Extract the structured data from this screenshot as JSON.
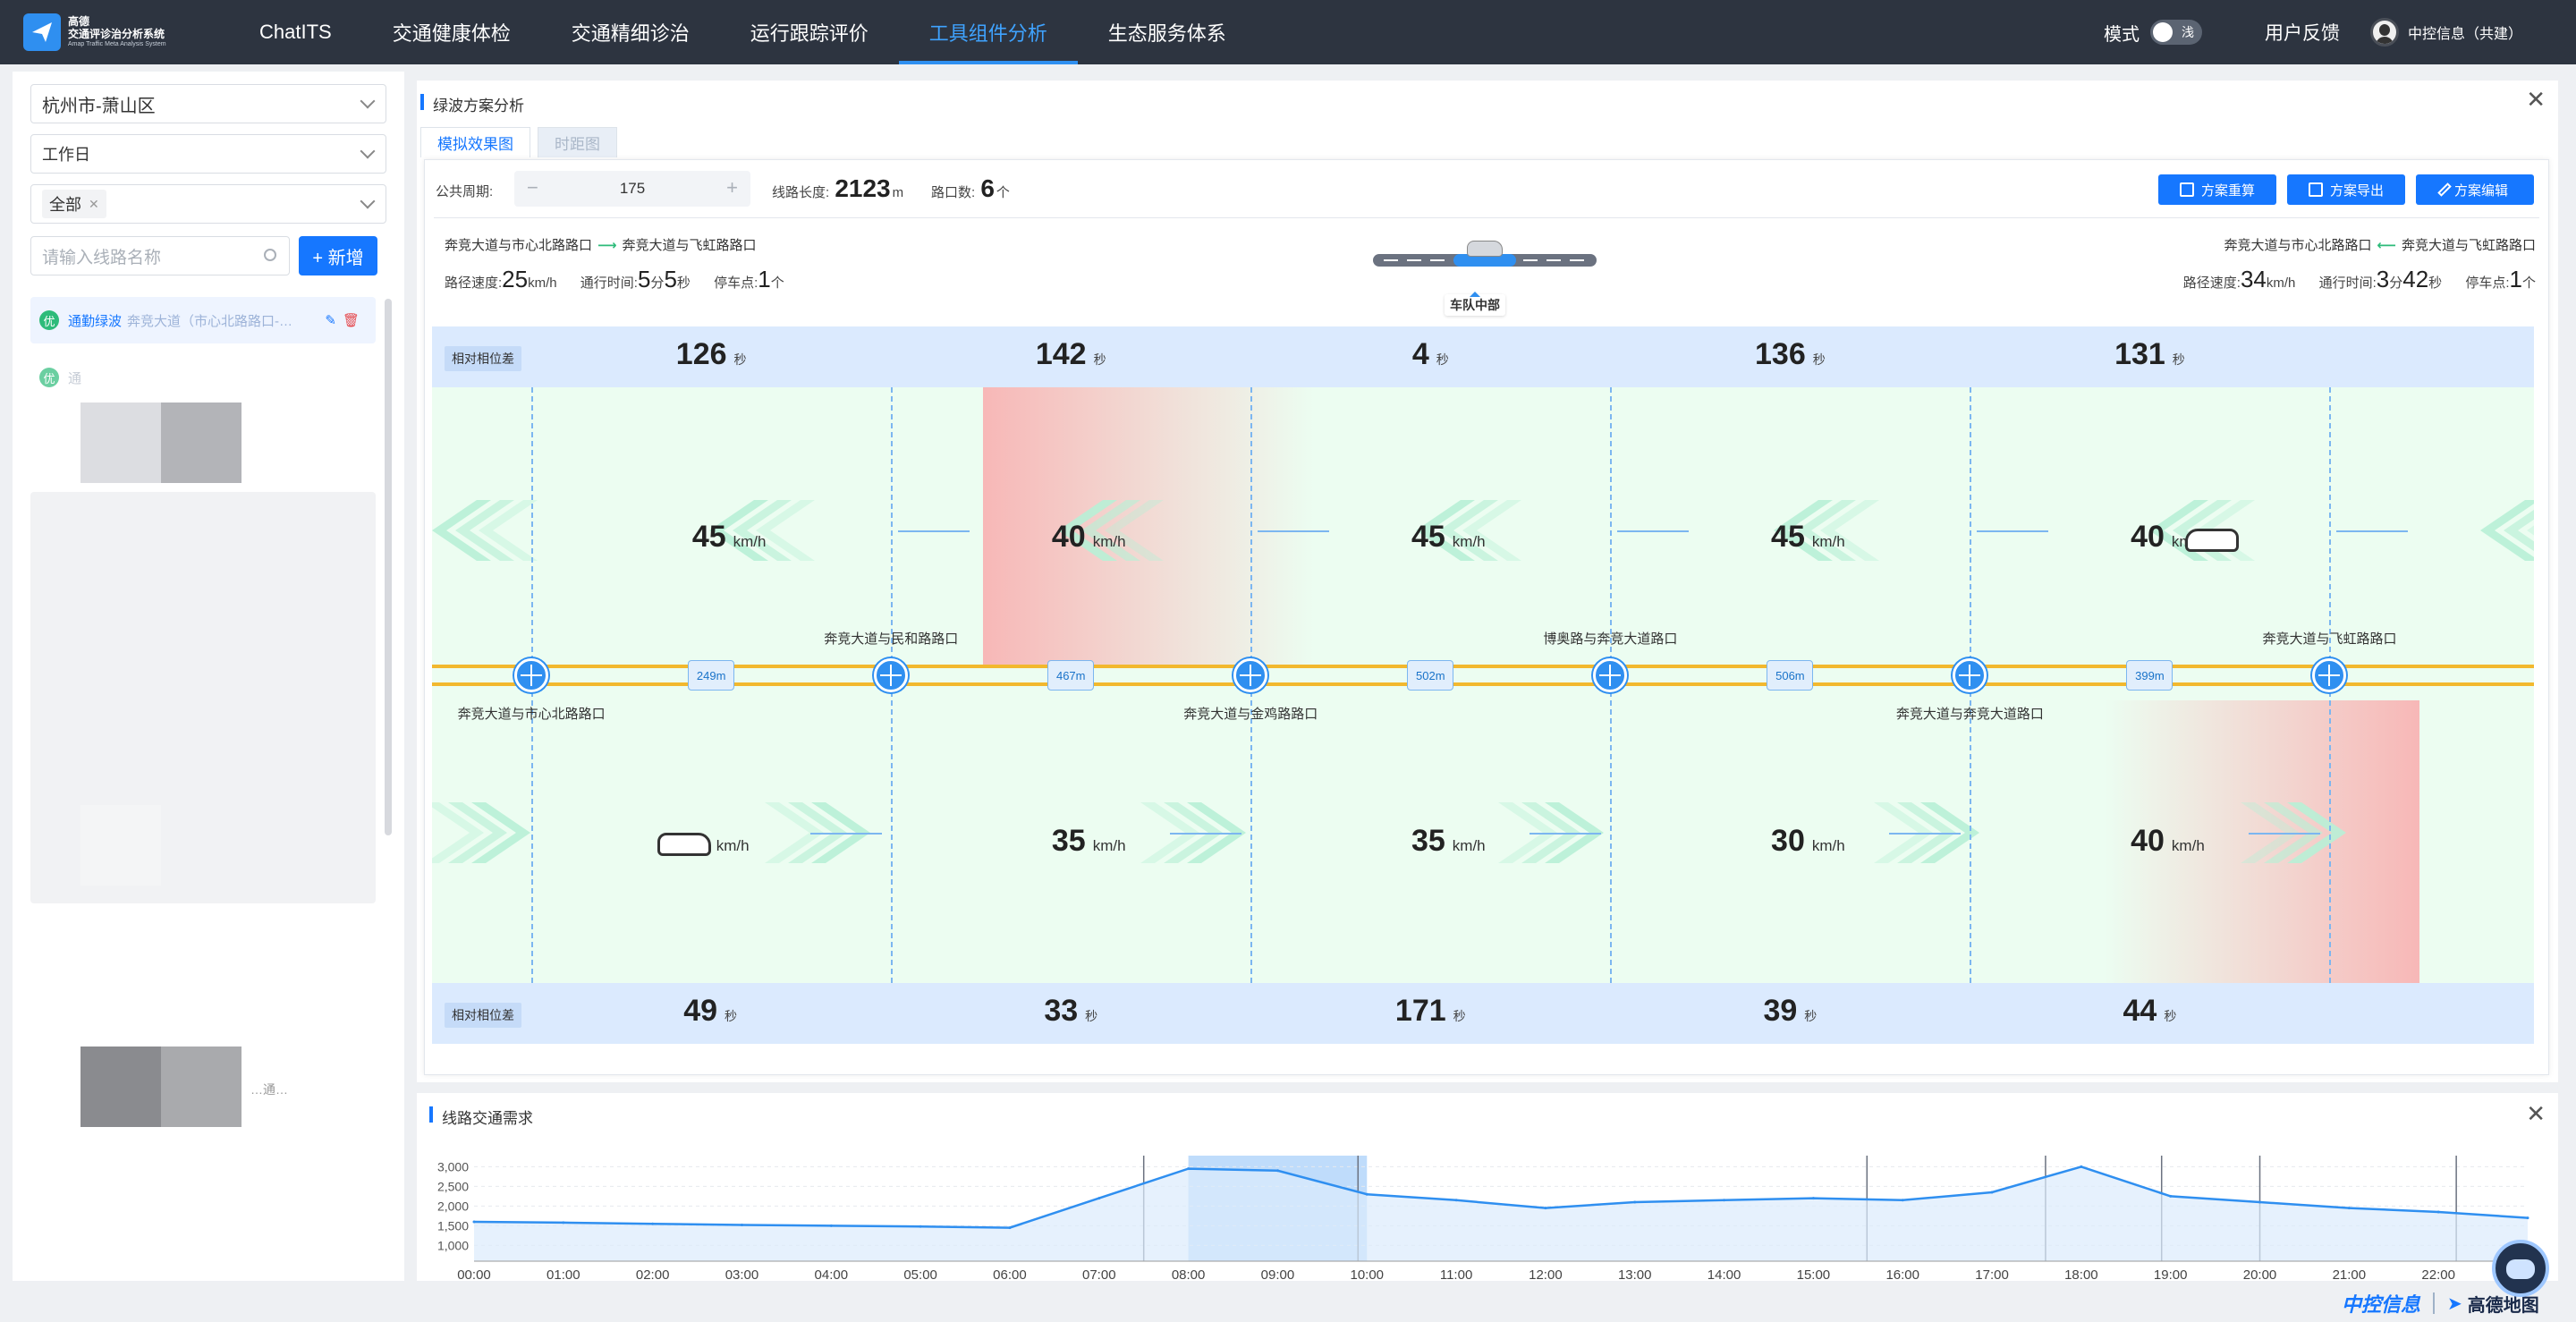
{
  "header": {
    "logo_line1": "高德",
    "logo_line2": "交通评诊治分析系统",
    "logo_line3": "Amap Traffic Meta Analysis System",
    "nav": [
      "ChatITS",
      "交通健康体检",
      "交通精细诊治",
      "运行跟踪评价",
      "工具组件分析",
      "生态服务体系"
    ],
    "active_nav": "工具组件分析",
    "mode_label": "模式",
    "mode_value": "浅",
    "feedback": "用户反馈",
    "user": "中控信息（共建）"
  },
  "sidebar": {
    "region": "杭州市-萧山区",
    "day_type": "工作日",
    "filter_tag": "全部",
    "search_placeholder": "请输入线路名称",
    "add_button": "+ 新增",
    "routes": [
      {
        "badge": "优",
        "name": "通勤绿波",
        "sub": "奔竞大道（市心北路路口-…"
      },
      {
        "badge": "优",
        "name": "通",
        "sub": ""
      }
    ],
    "partial_text": "…通…"
  },
  "panel": {
    "title": "绿波方案分析",
    "tabs": [
      "模拟效果图",
      "时距图"
    ],
    "active_tab": "模拟效果图",
    "cycle_label": "公共周期:",
    "cycle_value": "175",
    "length_label": "线路长度:",
    "length_value": "2123",
    "length_unit": "m",
    "intersections_label": "路口数:",
    "intersections_value": "6",
    "intersections_unit": "个",
    "buttons": [
      "方案重算",
      "方案导出",
      "方案编辑"
    ],
    "left_dir": {
      "from": "奔竞大道与市心北路路口",
      "to": "奔竞大道与飞虹路路口",
      "speed": "25",
      "time_min": "5",
      "time_sec": "5",
      "stops": "1"
    },
    "right_dir": {
      "from": "奔竞大道与市心北路路口",
      "to": "奔竞大道与飞虹路路口",
      "speed": "34",
      "time_min": "3",
      "time_sec": "42",
      "stops": "1"
    },
    "labels": {
      "speed": "路径速度:",
      "time": "通行时间:",
      "stops": "停车点:",
      "kmh": "km/h",
      "min": "分",
      "sec": "秒",
      "unit_ge": "个"
    },
    "slider_caption": "车队中部",
    "phase_label": "相对相位差",
    "phase_top": [
      "126",
      "142",
      "4",
      "136",
      "131"
    ],
    "phase_bottom": [
      "49",
      "33",
      "171",
      "39",
      "44"
    ],
    "speeds_top": [
      "45",
      "40",
      "45",
      "45",
      "40"
    ],
    "speeds_bottom": [
      "",
      "35",
      "35",
      "30",
      "40"
    ],
    "intersections": [
      "奔竞大道与市心北路路口",
      "奔竞大道与民和路路口",
      "奔竞大道与金鸡路路口",
      "博奥路与奔竞大道路口",
      "奔竞大道与奔竞大道路口",
      "奔竞大道与飞虹路路口"
    ],
    "distances": [
      "249m",
      "467m",
      "502m",
      "506m",
      "399m"
    ]
  },
  "demand": {
    "title": "线路交通需求",
    "chart_data": {
      "type": "area",
      "title": "线路交通需求",
      "x": [
        "00:00",
        "01:00",
        "02:00",
        "03:00",
        "04:00",
        "05:00",
        "06:00",
        "07:00",
        "08:00",
        "09:00",
        "10:00",
        "11:00",
        "12:00",
        "13:00",
        "14:00",
        "15:00",
        "16:00",
        "17:00",
        "18:00",
        "19:00",
        "20:00",
        "21:00",
        "22:00",
        "23:00"
      ],
      "yticks": [
        "1,000",
        "1,500",
        "2,000",
        "2,500",
        "3,000"
      ],
      "ylim": [
        600,
        3100
      ],
      "series": [
        {
          "values": [
            1600,
            1580,
            1550,
            1520,
            1500,
            1480,
            1450,
            2200,
            2950,
            2900,
            2300,
            2150,
            1950,
            2100,
            2150,
            2200,
            2150,
            2350,
            3000,
            2250,
            2100,
            1950,
            1850,
            1700
          ]
        }
      ],
      "highlight": [
        "08:00",
        "10:00"
      ],
      "grid": true
    }
  },
  "footer": {
    "logo1": "中控信息",
    "logo2": "高德地图"
  }
}
